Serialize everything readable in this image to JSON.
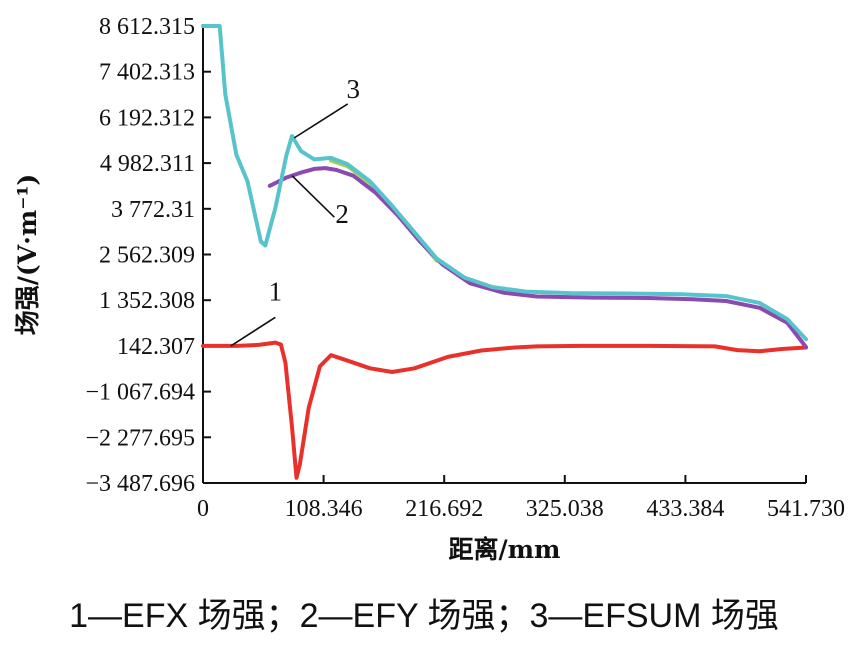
{
  "chart_data": {
    "type": "line",
    "xlabel": "距离/mm",
    "ylabel": "场强/(V·m⁻¹)",
    "xlim": [
      0,
      541.73
    ],
    "ylim": [
      -3487.696,
      8612.315
    ],
    "x_ticks": [
      "0",
      "108.346",
      "216.692",
      "325.038",
      "433.384",
      "541.730"
    ],
    "y_ticks": [
      "8 612.315",
      "7 402.313",
      "6 192.312",
      "4 982.311",
      "3 772.31",
      "2 562.309",
      "1 352.308",
      "142.307",
      "−1 067.694",
      "−2 277.695",
      "−3 487.696"
    ],
    "grid": false,
    "series": [
      {
        "name": "1",
        "color": "#e8312a",
        "points": [
          [
            0,
            142
          ],
          [
            30,
            142
          ],
          [
            50,
            170
          ],
          [
            65,
            230
          ],
          [
            70,
            180
          ],
          [
            74,
            -300
          ],
          [
            80,
            -2000
          ],
          [
            84,
            -3350
          ],
          [
            87,
            -3000
          ],
          [
            95,
            -1500
          ],
          [
            105,
            -400
          ],
          [
            115,
            -100
          ],
          [
            130,
            -250
          ],
          [
            150,
            -450
          ],
          [
            170,
            -550
          ],
          [
            190,
            -450
          ],
          [
            220,
            -150
          ],
          [
            250,
            20
          ],
          [
            280,
            100
          ],
          [
            300,
            130
          ],
          [
            340,
            142
          ],
          [
            400,
            142
          ],
          [
            460,
            130
          ],
          [
            480,
            30
          ],
          [
            500,
            0
          ],
          [
            520,
            60
          ],
          [
            541.73,
            100
          ]
        ]
      },
      {
        "name": "2",
        "color": "#8a4aaf",
        "points": [
          [
            60,
            4380
          ],
          [
            75,
            4600
          ],
          [
            90,
            4750
          ],
          [
            100,
            4830
          ],
          [
            110,
            4850
          ],
          [
            120,
            4800
          ],
          [
            135,
            4650
          ],
          [
            155,
            4200
          ],
          [
            175,
            3600
          ],
          [
            195,
            2900
          ],
          [
            215,
            2300
          ],
          [
            240,
            1800
          ],
          [
            270,
            1550
          ],
          [
            300,
            1450
          ],
          [
            350,
            1420
          ],
          [
            400,
            1410
          ],
          [
            440,
            1380
          ],
          [
            470,
            1330
          ],
          [
            500,
            1150
          ],
          [
            525,
            750
          ],
          [
            541.73,
            110
          ]
        ]
      },
      {
        "name": "3",
        "color": "#57c4cc",
        "points": [
          [
            0,
            8612
          ],
          [
            15,
            8612
          ],
          [
            20,
            6800
          ],
          [
            30,
            5200
          ],
          [
            40,
            4500
          ],
          [
            52,
            2900
          ],
          [
            56,
            2800
          ],
          [
            65,
            3800
          ],
          [
            75,
            5200
          ],
          [
            80,
            5700
          ],
          [
            88,
            5300
          ],
          [
            100,
            5080
          ],
          [
            115,
            5120
          ],
          [
            130,
            4950
          ],
          [
            150,
            4500
          ],
          [
            170,
            3850
          ],
          [
            190,
            3150
          ],
          [
            210,
            2450
          ],
          [
            235,
            1950
          ],
          [
            260,
            1700
          ],
          [
            290,
            1580
          ],
          [
            330,
            1540
          ],
          [
            380,
            1530
          ],
          [
            430,
            1510
          ],
          [
            470,
            1460
          ],
          [
            500,
            1280
          ],
          [
            525,
            850
          ],
          [
            541.73,
            320
          ]
        ]
      },
      {
        "name": "",
        "color": "#9dcf5a",
        "points": [
          [
            115,
            5050
          ],
          [
            130,
            4900
          ],
          [
            150,
            4450
          ],
          [
            170,
            3800
          ],
          [
            190,
            3100
          ],
          [
            210,
            2400
          ]
        ]
      }
    ],
    "annotations": [
      {
        "text": "1",
        "x": 65,
        "y": 1350
      },
      {
        "text": "2",
        "x": 125,
        "y": 3400
      },
      {
        "text": "3",
        "x": 135,
        "y": 6700
      }
    ]
  },
  "caption": "1—EFX 场强；2—EFY 场强；3—EFSUM 场强"
}
